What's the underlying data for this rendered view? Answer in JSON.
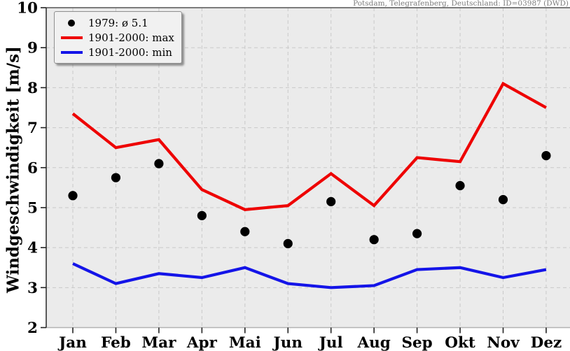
{
  "station_label": "Potsdam, Telegrafenberg, Deutschland: ID=03987 (DWD)",
  "colors": {
    "plot_background": "#ebebeb",
    "grid": "#c9c9c9",
    "spine_top": "#555555",
    "spine_left": "#333333",
    "spine_bottom": "#b3b3b3",
    "tick": "#222222",
    "tick_label": "#000000",
    "station_text": "#7d7d7d"
  },
  "chart_data": {
    "type": "line",
    "title": "",
    "xlabel": "",
    "ylabel": "Windgeschwindigkeit [m/s]",
    "ylim": [
      2,
      10
    ],
    "yticks": [
      2,
      3,
      4,
      5,
      6,
      7,
      8,
      9,
      10
    ],
    "grid": true,
    "legend_position": "top-left",
    "categories": [
      "Jan",
      "Feb",
      "Mar",
      "Apr",
      "Mai",
      "Jun",
      "Jul",
      "Aug",
      "Sep",
      "Okt",
      "Nov",
      "Dez"
    ],
    "series": [
      {
        "name": "1979: ø 5.1",
        "style": "scatter",
        "color": "#000000",
        "values": [
          5.3,
          5.75,
          6.1,
          4.8,
          4.4,
          4.1,
          5.15,
          4.2,
          4.35,
          5.55,
          5.2,
          6.3
        ]
      },
      {
        "name": "1901-2000: max",
        "style": "line",
        "color": "#ee0000",
        "values": [
          7.35,
          6.5,
          6.7,
          5.45,
          4.95,
          5.05,
          5.85,
          5.05,
          6.25,
          6.15,
          8.1,
          7.5
        ]
      },
      {
        "name": "1901-2000: min",
        "style": "line",
        "color": "#1414e8",
        "values": [
          3.6,
          3.1,
          3.35,
          3.25,
          3.5,
          3.1,
          3.0,
          3.05,
          3.45,
          3.5,
          3.25,
          3.45
        ]
      }
    ]
  }
}
